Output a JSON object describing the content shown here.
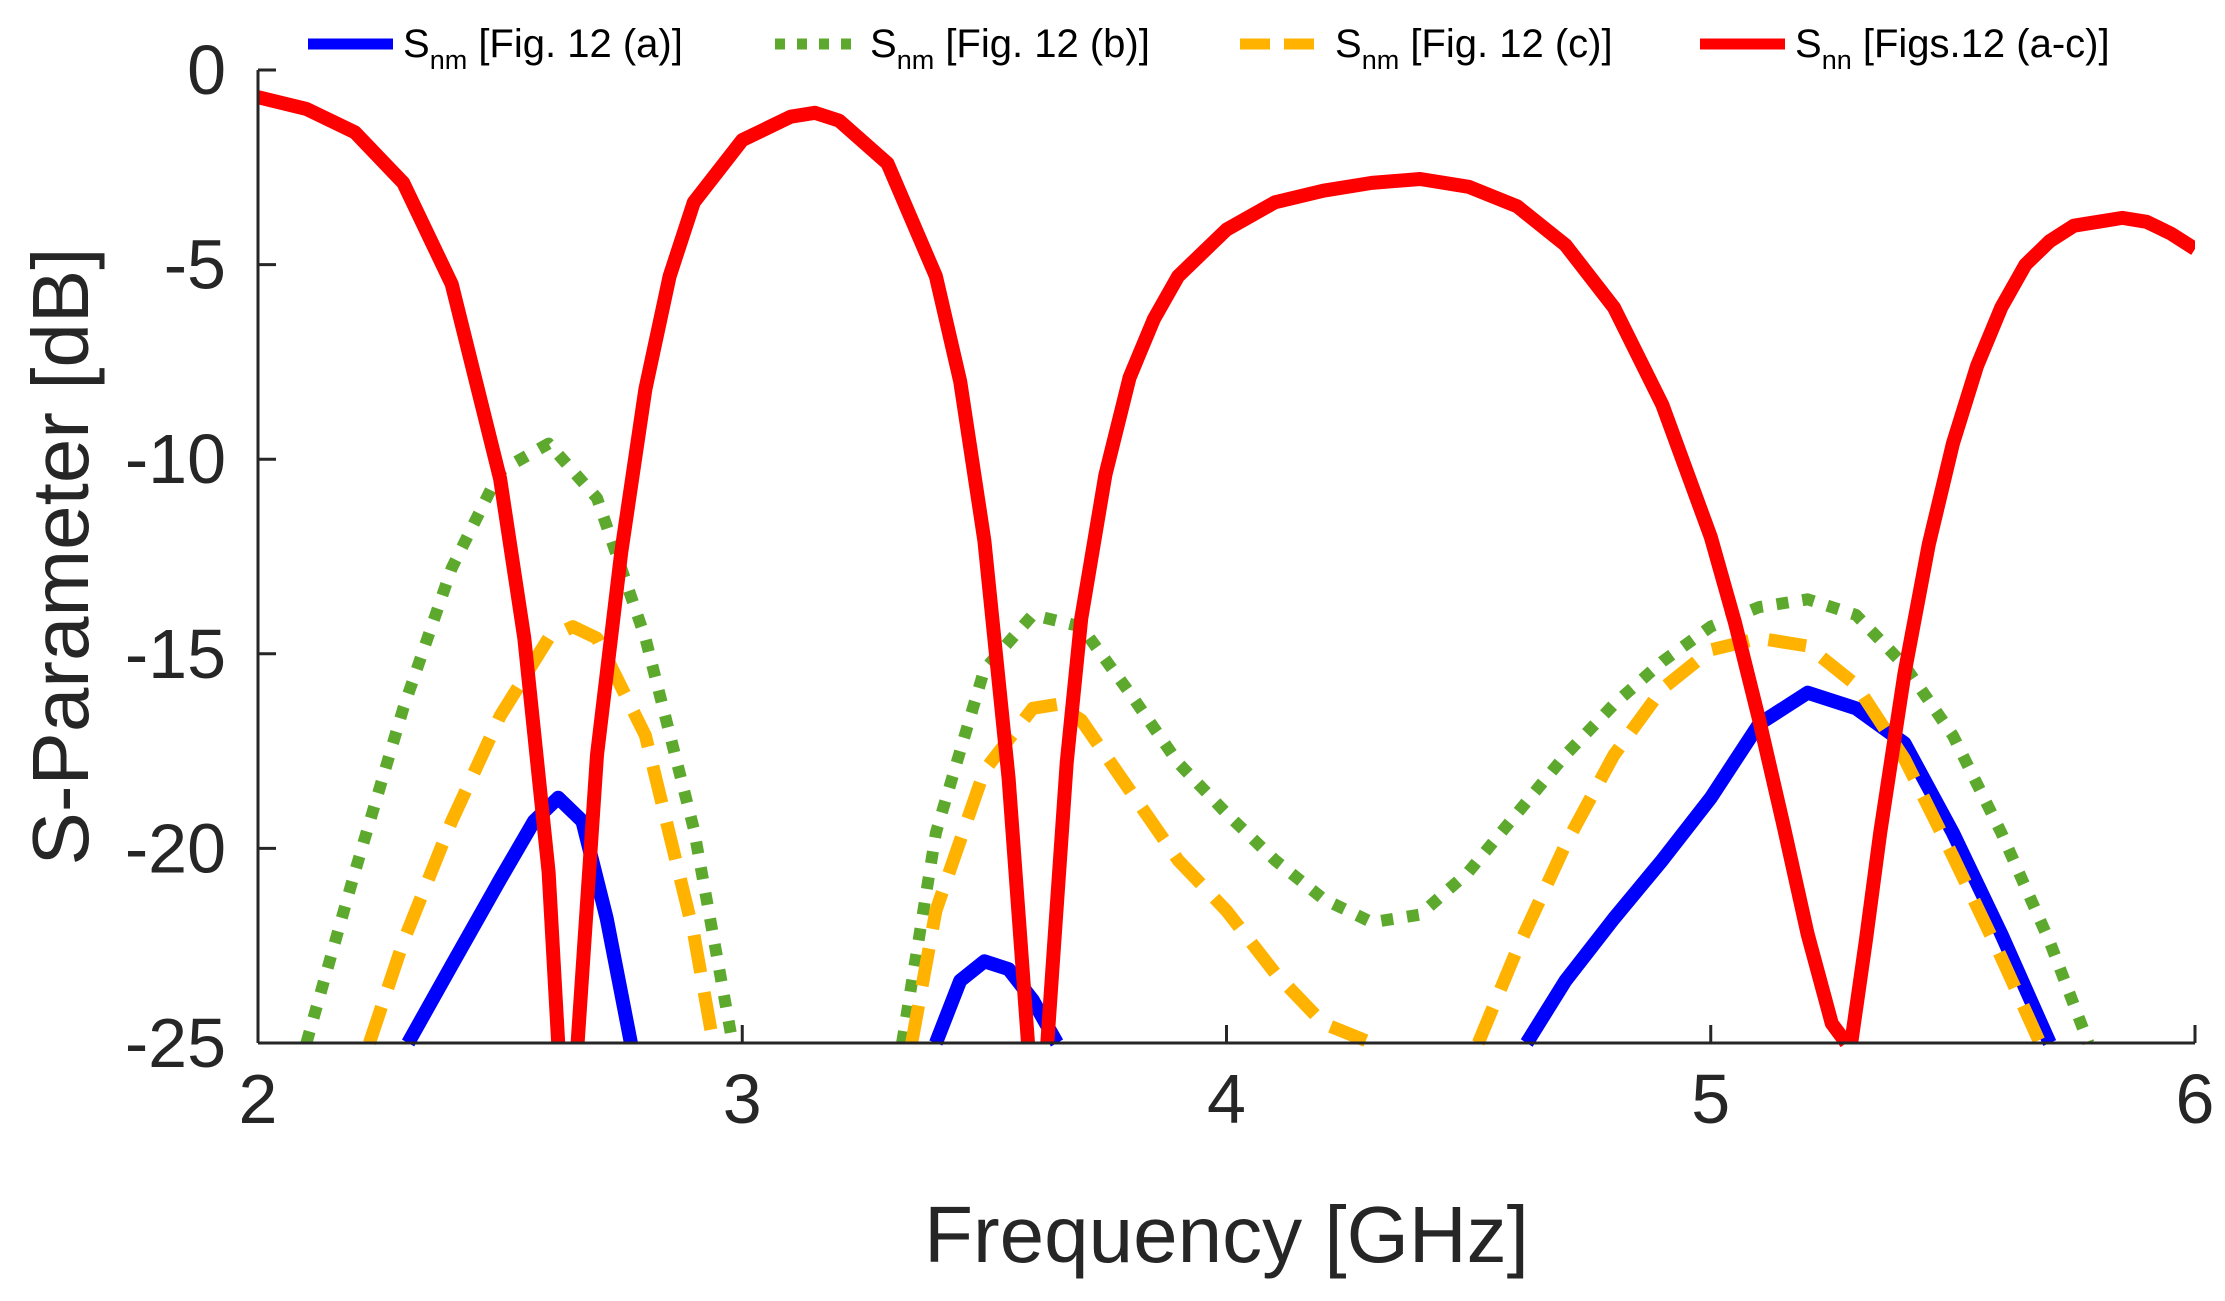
{
  "chart_data": {
    "type": "line",
    "title": "",
    "xlabel": "Frequency [GHz]",
    "ylabel": "S-Parameter [dB]",
    "xlim": [
      2,
      6
    ],
    "ylim": [
      -25,
      0
    ],
    "xticks": [
      2,
      3,
      4,
      5,
      6
    ],
    "yticks": [
      0,
      -5,
      -10,
      -15,
      -20,
      -25
    ],
    "xtick_labels": [
      "2",
      "3",
      "4",
      "5",
      "6"
    ],
    "ytick_labels": [
      "0",
      "-5",
      "-10",
      "-15",
      "-20",
      "-25"
    ],
    "grid": false,
    "legend_position": "top",
    "series": [
      {
        "name": "Snm [Fig. 12 (a)]",
        "label_main": "S",
        "label_sub": "nm",
        "label_rest": " [Fig. 12 (a)]",
        "color": "#0000FF",
        "style": "solid",
        "segments": [
          {
            "x": [
              2.31,
              2.4,
              2.5,
              2.57,
              2.62,
              2.67,
              2.72,
              2.77
            ],
            "y": [
              -25,
              -23.0,
              -20.8,
              -19.3,
              -18.7,
              -19.3,
              -21.8,
              -25
            ]
          },
          {
            "x": [
              3.4,
              3.45,
              3.5,
              3.55,
              3.6,
              3.65
            ],
            "y": [
              -25,
              -23.4,
              -22.9,
              -23.1,
              -23.9,
              -25
            ]
          },
          {
            "x": [
              4.62,
              4.7,
              4.8,
              4.9,
              5.0,
              5.1,
              5.2,
              5.3,
              5.4,
              5.5,
              5.6,
              5.7
            ],
            "y": [
              -25,
              -23.4,
              -21.8,
              -20.3,
              -18.7,
              -16.8,
              -16.0,
              -16.4,
              -17.3,
              -19.6,
              -22.2,
              -25
            ]
          }
        ]
      },
      {
        "name": "Snm [Fig. 12 (b)]",
        "label_main": "S",
        "label_sub": "nm",
        "label_rest": " [Fig. 12 (b)]",
        "color": "#5DA92E",
        "style": "dotted",
        "segments": [
          {
            "x": [
              2.1,
              2.2,
              2.3,
              2.4,
              2.5,
              2.6,
              2.7,
              2.8,
              2.9,
              2.98
            ],
            "y": [
              -25,
              -20.6,
              -16.4,
              -12.8,
              -10.3,
              -9.6,
              -11.0,
              -14.6,
              -19.5,
              -25
            ]
          },
          {
            "x": [
              3.33,
              3.4,
              3.5,
              3.6,
              3.7,
              3.8,
              3.9,
              4.0,
              4.1,
              4.2,
              4.3,
              4.4,
              4.5,
              4.6,
              4.7,
              4.8,
              4.9,
              5.0,
              5.1,
              5.2,
              5.3,
              5.4,
              5.5,
              5.6,
              5.7,
              5.78
            ],
            "y": [
              -25,
              -19.6,
              -15.4,
              -14.0,
              -14.3,
              -16.0,
              -17.8,
              -19.1,
              -20.3,
              -21.3,
              -21.9,
              -21.7,
              -20.6,
              -19.1,
              -17.6,
              -16.3,
              -15.2,
              -14.3,
              -13.8,
              -13.6,
              -14.0,
              -15.3,
              -17.1,
              -19.6,
              -22.4,
              -25
            ]
          }
        ]
      },
      {
        "name": "Snm [Fig. 12 (c)]",
        "label_main": "S",
        "label_sub": "nm",
        "label_rest": " [Fig. 12 (c)]",
        "color": "#FFB300",
        "style": "dashed",
        "segments": [
          {
            "x": [
              2.23,
              2.3,
              2.4,
              2.5,
              2.6,
              2.65,
              2.7,
              2.8,
              2.9,
              2.94
            ],
            "y": [
              -25,
              -22.4,
              -19.3,
              -16.6,
              -14.6,
              -14.3,
              -14.6,
              -17.1,
              -22.2,
              -25
            ]
          },
          {
            "x": [
              3.35,
              3.4,
              3.5,
              3.6,
              3.65,
              3.7,
              3.8,
              3.9,
              4.0,
              4.1,
              4.2,
              4.3
            ],
            "y": [
              -25,
              -21.6,
              -18.0,
              -16.4,
              -16.3,
              -16.7,
              -18.5,
              -20.3,
              -21.6,
              -23.2,
              -24.5,
              -25
            ]
          },
          {
            "x": [
              4.52,
              4.6,
              4.7,
              4.8,
              4.9,
              5.0,
              5.1,
              5.2,
              5.3,
              5.4,
              5.5,
              5.6,
              5.68
            ],
            "y": [
              -25,
              -22.6,
              -19.9,
              -17.6,
              -15.9,
              -14.9,
              -14.6,
              -14.8,
              -15.8,
              -17.7,
              -20.2,
              -22.8,
              -25
            ]
          }
        ]
      },
      {
        "name": "Snn [Figs.12 (a-c)]",
        "label_main": "S",
        "label_sub": "nn",
        "label_rest": " [Figs.12 (a-c)]",
        "color": "#FF0000",
        "style": "solid",
        "segments": [
          {
            "x": [
              2.0,
              2.1,
              2.2,
              2.3,
              2.4,
              2.5,
              2.55,
              2.6,
              2.62
            ],
            "y": [
              -0.7,
              -1.0,
              -1.6,
              -2.9,
              -5.5,
              -10.5,
              -14.6,
              -20.6,
              -25
            ]
          },
          {
            "x": [
              2.66,
              2.7,
              2.75,
              2.8,
              2.85,
              2.9,
              3.0,
              3.1,
              3.15,
              3.2,
              3.3,
              3.4,
              3.45,
              3.5,
              3.55,
              3.59
            ],
            "y": [
              -25,
              -17.6,
              -12.4,
              -8.2,
              -5.3,
              -3.4,
              -1.8,
              -1.2,
              -1.1,
              -1.3,
              -2.4,
              -5.3,
              -8.0,
              -12.1,
              -18.2,
              -25
            ]
          },
          {
            "x": [
              3.63,
              3.67,
              3.7,
              3.75,
              3.8,
              3.85,
              3.9,
              4.0,
              4.1,
              4.2,
              4.3,
              4.4,
              4.5,
              4.6,
              4.7,
              4.8,
              4.9,
              5.0,
              5.05,
              5.1,
              5.15,
              5.2,
              5.25,
              5.28
            ],
            "y": [
              -25,
              -17.8,
              -14.1,
              -10.4,
              -7.9,
              -6.4,
              -5.3,
              -4.1,
              -3.4,
              -3.1,
              -2.9,
              -2.8,
              -3.0,
              -3.5,
              -4.5,
              -6.1,
              -8.6,
              -12.0,
              -14.2,
              -16.7,
              -19.4,
              -22.2,
              -24.5,
              -25
            ]
          },
          {
            "x": [
              5.29,
              5.32,
              5.35,
              5.4,
              5.45,
              5.5,
              5.55,
              5.6,
              5.65,
              5.7,
              5.75,
              5.8,
              5.85,
              5.9,
              5.95,
              6.0
            ],
            "y": [
              -25,
              -22.4,
              -19.6,
              -15.5,
              -12.2,
              -9.6,
              -7.6,
              -6.1,
              -5.0,
              -4.4,
              -4.0,
              -3.9,
              -3.8,
              -3.9,
              -4.2,
              -4.6
            ]
          }
        ]
      }
    ]
  }
}
